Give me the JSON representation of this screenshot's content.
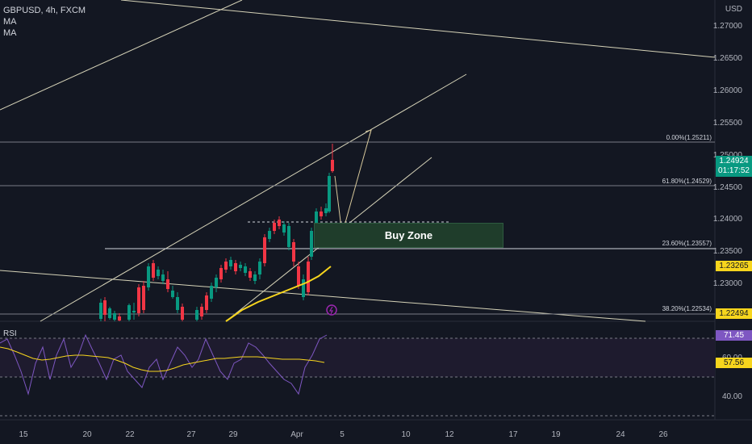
{
  "header": {
    "symbol_line": "GBPUSD, 4h, FXCM",
    "ma1": "MA",
    "ma2": "MA"
  },
  "price_axis": {
    "currency": "USD",
    "ticks": [
      "1.27000",
      "1.26500",
      "1.26000",
      "1.25500",
      "1.25000",
      "1.24500",
      "1.24000",
      "1.23500",
      "1.23000"
    ]
  },
  "current_price": {
    "value": "1.24924",
    "countdown": "01:17:52",
    "color": "#089981"
  },
  "ma_tag": {
    "value": "1.23265",
    "color": "#f7d51d"
  },
  "last_tag": {
    "value": "1.22494",
    "color": "#f7d51d"
  },
  "fib_levels": [
    {
      "label": "0.00%(1.25211)"
    },
    {
      "label": "61.80%(1.24529)"
    },
    {
      "label": "23.60%(1.23557)"
    },
    {
      "label": "38.20%(1.22534)"
    }
  ],
  "buy_zone": {
    "label": "Buy Zone",
    "color": "#1f3d2b"
  },
  "rsi": {
    "title": "RSI",
    "ticks": [
      "60.00",
      "40.00"
    ],
    "rsi_value": "71.45",
    "rsi_color": "#7e57c2",
    "ma_value": "57.56",
    "ma_color": "#f7d51d"
  },
  "time_axis": {
    "labels": [
      "15",
      "20",
      "22",
      "27",
      "29",
      "Apr",
      "5",
      "10",
      "12",
      "17",
      "19",
      "24",
      "26"
    ]
  },
  "colors": {
    "bull": "#089981",
    "bear": "#f23645",
    "background": "#131722",
    "ma_line": "#f7d51d",
    "trendline": "#d6d3b8"
  }
}
